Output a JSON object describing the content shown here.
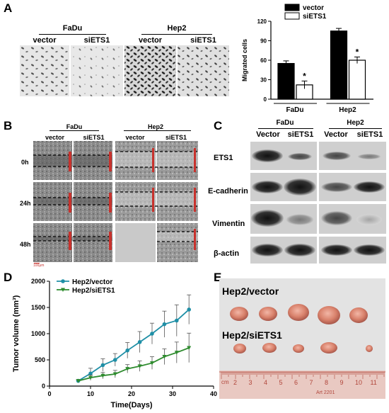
{
  "panel_labels": {
    "a": "A",
    "b": "B",
    "c": "C",
    "d": "D",
    "e": "E"
  },
  "panelA": {
    "group1": "FaDu",
    "group2": "Hep2",
    "col_vector": "vector",
    "col_siets1": "siETS1"
  },
  "chart_data": [
    {
      "id": "migration",
      "type": "bar",
      "title": "",
      "ylabel": "Migrated cells",
      "xlabel": "",
      "categories": [
        "FaDu",
        "Hep2"
      ],
      "ylim": [
        0,
        120
      ],
      "yticks": [
        0,
        30,
        60,
        90,
        120
      ],
      "series": [
        {
          "name": "vector",
          "values": [
            55,
            105
          ],
          "errors": [
            4,
            4
          ],
          "color": "#000000"
        },
        {
          "name": "siETS1",
          "values": [
            22,
            60
          ],
          "errors": [
            6,
            5
          ],
          "color": "#ffffff"
        }
      ],
      "significance": [
        "*",
        "*"
      ],
      "legend_position": "top-right"
    },
    {
      "id": "tumor_volume",
      "type": "line",
      "title": "",
      "xlabel": "Time(Days)",
      "ylabel": "Tumor volume (mm³)",
      "xlim": [
        0,
        40
      ],
      "ylim": [
        0,
        2000
      ],
      "xticks": [
        0,
        10,
        20,
        30,
        40
      ],
      "yticks": [
        0,
        500,
        1000,
        1500,
        2000
      ],
      "x": [
        7,
        10,
        13,
        16,
        19,
        22,
        25,
        28,
        31,
        34
      ],
      "series": [
        {
          "name": "Hep2/vector",
          "color": "#1f8fa6",
          "values": [
            100,
            240,
            400,
            500,
            680,
            840,
            1000,
            1180,
            1250,
            1460
          ],
          "errors": [
            20,
            100,
            120,
            120,
            150,
            200,
            200,
            250,
            300,
            280
          ]
        },
        {
          "name": "Hep2/siETS1",
          "color": "#2e8b2e",
          "values": [
            100,
            160,
            200,
            230,
            330,
            380,
            440,
            560,
            640,
            730
          ],
          "errors": [
            20,
            50,
            60,
            70,
            80,
            100,
            120,
            150,
            200,
            280
          ]
        }
      ],
      "legend_position": "top-left"
    }
  ],
  "panelB": {
    "group1": "FaDu",
    "group2": "Hep2",
    "col_vector": "vector",
    "col_siets1": "siETS1",
    "rows": [
      "0h",
      "24h",
      "48h"
    ],
    "scale": "100μm"
  },
  "panelC": {
    "group1": "FaDu",
    "group2": "Hep2",
    "col_vector": "Vector",
    "col_siets1": "siETS1",
    "proteins": [
      "ETS1",
      "E-cadherin",
      "Vimentin",
      "β-actin"
    ]
  },
  "panelE": {
    "label_vector": "Hep2/vector",
    "label_siets1": "Hep2/siETS1",
    "ruler_unit": "cm",
    "ruler_ticks": [
      "2",
      "3",
      "4",
      "5",
      "6",
      "7",
      "8",
      "9",
      "10",
      "11"
    ],
    "ruler_text": "Art 2201"
  }
}
